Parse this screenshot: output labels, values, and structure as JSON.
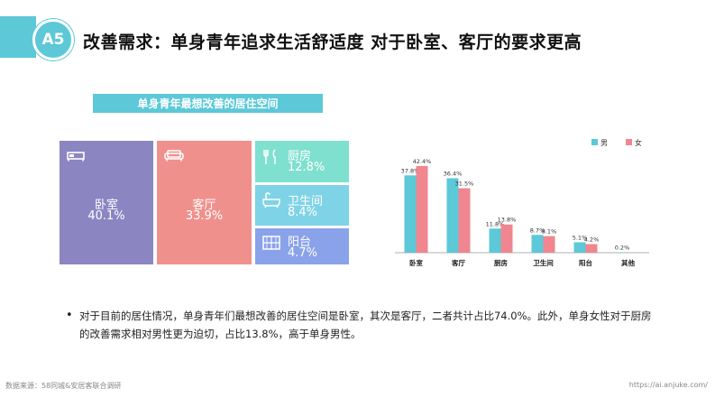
{
  "header": {
    "badge": "A5",
    "title": "改善需求：单身青年追求生活舒适度 对于卧室、客厅的要求更高"
  },
  "treemap": {
    "title": "单身青年最想改善的居住空间",
    "tiles": [
      {
        "name": "卧室",
        "value": "40.1%",
        "color": "#8b85c1",
        "icon": "bed-icon"
      },
      {
        "name": "客厅",
        "value": "33.9%",
        "color": "#f0908c",
        "icon": "sofa-icon"
      },
      {
        "name": "厨房",
        "value": "12.8%",
        "color": "#7fe0cf",
        "icon": "utensils-icon"
      },
      {
        "name": "卫生间",
        "value": "8.4%",
        "color": "#7fd3e6",
        "icon": "bathtub-icon"
      },
      {
        "name": "阳台",
        "value": "4.7%",
        "color": "#8aa2ea",
        "icon": "window-icon"
      }
    ]
  },
  "chart_data": {
    "type": "bar",
    "categories": [
      "卧室",
      "客厅",
      "厨房",
      "卫生间",
      "阳台",
      "其他"
    ],
    "series": [
      {
        "name": "男",
        "color": "#5cc8d8",
        "values": [
          37.8,
          36.4,
          11.8,
          8.7,
          5.1,
          0.2
        ],
        "labels": [
          "37.8%",
          "36.4%",
          "11.8%",
          "8.7%",
          "5.1%",
          "0.2%"
        ]
      },
      {
        "name": "女",
        "color": "#f0868f",
        "values": [
          42.4,
          31.5,
          13.8,
          8.1,
          4.2,
          0
        ],
        "labels": [
          "42.4%",
          "31.5%",
          "13.8%",
          "8.1%",
          "4.2%",
          ""
        ]
      }
    ],
    "ylim": [
      0,
      45
    ],
    "legend_position": "top-right"
  },
  "note": {
    "bullet": "•",
    "text": "对于目前的居住情况，单身青年们最想改善的居住空间是卧室，其次是客厅，二者共计占比74.0%。此外，单身女性对于厨房的改善需求相对男性更为迫切，占比13.8%，高于单身男性。"
  },
  "footer": {
    "source": "数据来源：58同城&安居客联合调研",
    "url": "https://ai.anjuke.com/"
  }
}
